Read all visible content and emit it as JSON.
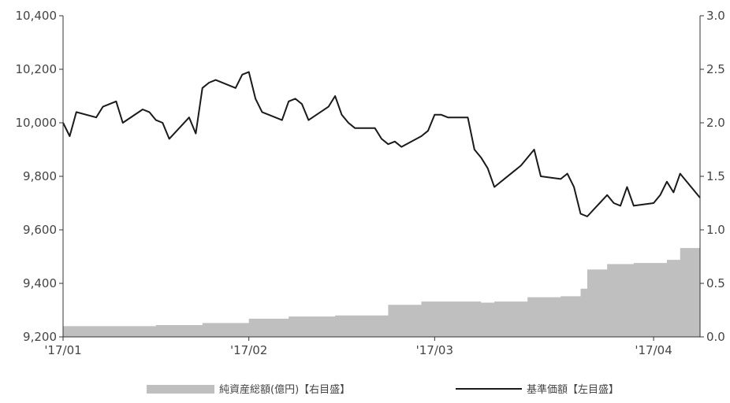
{
  "chart_data": {
    "type": "line",
    "title": "",
    "xlabel": "",
    "y_left_label": "",
    "y_right_label": "",
    "ylim_left": [
      9200,
      10400
    ],
    "ylim_right": [
      0.0,
      3.0
    ],
    "y_left_ticks": [
      "10,400",
      "10,200",
      "10,000",
      "9,800",
      "9,600",
      "9,400",
      "9,200"
    ],
    "y_right_ticks": [
      "3.0",
      "2.5",
      "2.0",
      "1.5",
      "1.0",
      "0.5",
      "0.0"
    ],
    "x_tick_labels": [
      "'17/01",
      "'17/02",
      "'17/03",
      "'17/04"
    ],
    "x_tick_dates": [
      "2017-01-04",
      "2017-02-01",
      "2017-03-01",
      "2017-04-03"
    ],
    "xlim": [
      "2017-01-04",
      "2017-04-10"
    ],
    "grid": false,
    "legend_position": "bottom",
    "colors": {
      "nav_line": "#1a1a1a",
      "assets_area": "#bfbfbf",
      "axis": "#333333"
    },
    "series": [
      {
        "name": "純資産総額(億円)【右目盛】",
        "kind": "area",
        "axis": "right",
        "x": [
          "2017-01-04",
          "2017-01-10",
          "2017-01-18",
          "2017-01-25",
          "2017-01-30",
          "2017-02-01",
          "2017-02-07",
          "2017-02-14",
          "2017-02-22",
          "2017-02-27",
          "2017-03-01",
          "2017-03-08",
          "2017-03-10",
          "2017-03-15",
          "2017-03-20",
          "2017-03-23",
          "2017-03-24",
          "2017-03-27",
          "2017-03-31",
          "2017-04-05",
          "2017-04-07",
          "2017-04-10"
        ],
        "values": [
          0.1,
          0.1,
          0.11,
          0.13,
          0.13,
          0.17,
          0.19,
          0.2,
          0.3,
          0.33,
          0.33,
          0.32,
          0.33,
          0.37,
          0.38,
          0.45,
          0.63,
          0.68,
          0.69,
          0.72,
          0.83,
          0.83
        ]
      },
      {
        "name": "基準価額【左目盛】",
        "kind": "line",
        "axis": "left",
        "x": [
          "2017-01-04",
          "2017-01-05",
          "2017-01-06",
          "2017-01-09",
          "2017-01-10",
          "2017-01-11",
          "2017-01-12",
          "2017-01-13",
          "2017-01-16",
          "2017-01-17",
          "2017-01-18",
          "2017-01-19",
          "2017-01-20",
          "2017-01-23",
          "2017-01-24",
          "2017-01-25",
          "2017-01-26",
          "2017-01-27",
          "2017-01-30",
          "2017-01-31",
          "2017-02-01",
          "2017-02-02",
          "2017-02-03",
          "2017-02-06",
          "2017-02-07",
          "2017-02-08",
          "2017-02-09",
          "2017-02-10",
          "2017-02-13",
          "2017-02-14",
          "2017-02-15",
          "2017-02-16",
          "2017-02-17",
          "2017-02-20",
          "2017-02-21",
          "2017-02-22",
          "2017-02-23",
          "2017-02-24",
          "2017-02-27",
          "2017-02-28",
          "2017-03-01",
          "2017-03-02",
          "2017-03-03",
          "2017-03-06",
          "2017-03-07",
          "2017-03-08",
          "2017-03-09",
          "2017-03-10",
          "2017-03-13",
          "2017-03-14",
          "2017-03-15",
          "2017-03-16",
          "2017-03-17",
          "2017-03-20",
          "2017-03-21",
          "2017-03-22",
          "2017-03-23",
          "2017-03-24",
          "2017-03-27",
          "2017-03-28",
          "2017-03-29",
          "2017-03-30",
          "2017-03-31",
          "2017-04-03",
          "2017-04-04",
          "2017-04-05",
          "2017-04-06",
          "2017-04-07",
          "2017-04-10"
        ],
        "values": [
          10000,
          9950,
          10040,
          10020,
          10060,
          10070,
          10080,
          10000,
          10050,
          10040,
          10010,
          10000,
          9940,
          10020,
          9960,
          10130,
          10150,
          10160,
          10130,
          10180,
          10190,
          10090,
          10040,
          10010,
          10080,
          10090,
          10070,
          10010,
          10060,
          10100,
          10030,
          10000,
          9980,
          9980,
          9940,
          9920,
          9930,
          9910,
          9950,
          9970,
          10030,
          10030,
          10020,
          10020,
          9900,
          9870,
          9830,
          9760,
          9820,
          9840,
          9870,
          9900,
          9800,
          9790,
          9810,
          9760,
          9660,
          9650,
          9730,
          9700,
          9690,
          9760,
          9690,
          9700,
          9730,
          9780,
          9740,
          9810,
          9720
        ]
      }
    ]
  }
}
